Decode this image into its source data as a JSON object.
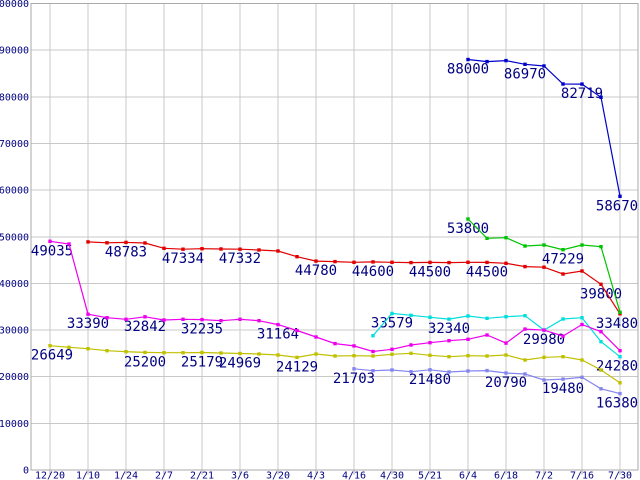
{
  "chart_data": {
    "type": "line",
    "title": "",
    "grid": true,
    "legend_position": "none",
    "colors": {
      "background": "#ffffff",
      "grid": "#c8c8c8",
      "axis": "#aaaaaa",
      "label_text": "#000080"
    },
    "x_axis": {
      "tick_labels": [
        "12/20",
        "1/10",
        "1/24",
        "2/7",
        "2/21",
        "3/6",
        "3/20",
        "4/3",
        "4/16",
        "4/30",
        "5/21",
        "6/4",
        "6/18",
        "7/2",
        "7/16",
        "7/30"
      ]
    },
    "y_axis": {
      "min": 0,
      "max": 100000,
      "step": 10000,
      "tick_labels": [
        "0",
        "10000",
        "20000",
        "30000",
        "40000",
        "50000",
        "60000",
        "70000",
        "80000",
        "90000",
        "100000"
      ]
    },
    "series": [
      {
        "name": "slate",
        "color": "#8585f0",
        "points": [
          [
            8,
            21703
          ],
          [
            8.5,
            21290
          ],
          [
            9,
            21440
          ],
          [
            9.5,
            21070
          ],
          [
            10,
            21480
          ],
          [
            10.5,
            21010
          ],
          [
            11,
            21220
          ],
          [
            11.5,
            21300
          ],
          [
            12,
            20790
          ],
          [
            12.5,
            20580
          ],
          [
            13,
            19290
          ],
          [
            13.5,
            19480
          ],
          [
            14,
            19870
          ],
          [
            14.5,
            17400
          ],
          [
            15,
            16380
          ]
        ],
        "labels": [
          {
            "at": 8,
            "text": "21703"
          },
          {
            "at": 10,
            "text": "21480"
          },
          {
            "at": 12,
            "text": "20790"
          },
          {
            "at": 13.5,
            "text": "19480"
          },
          {
            "at": 15,
            "text": "16380"
          }
        ]
      },
      {
        "name": "olive",
        "color": "#c0c000",
        "points": [
          [
            0,
            26649
          ],
          [
            0.5,
            26300
          ],
          [
            1,
            26000
          ],
          [
            1.5,
            25570
          ],
          [
            2,
            25360
          ],
          [
            2.5,
            25200
          ],
          [
            3,
            25150
          ],
          [
            3.5,
            25150
          ],
          [
            4,
            25179
          ],
          [
            4.5,
            25080
          ],
          [
            5,
            24969
          ],
          [
            5.5,
            24860
          ],
          [
            6,
            24650
          ],
          [
            6.5,
            24129
          ],
          [
            7,
            24860
          ],
          [
            7.5,
            24440
          ],
          [
            8,
            24510
          ],
          [
            8.5,
            24440
          ],
          [
            9,
            24800
          ],
          [
            9.5,
            25010
          ],
          [
            10,
            24580
          ],
          [
            10.5,
            24290
          ],
          [
            11,
            24510
          ],
          [
            11.5,
            24440
          ],
          [
            12,
            24650
          ],
          [
            12.5,
            23580
          ],
          [
            13,
            24150
          ],
          [
            13.5,
            24290
          ],
          [
            14,
            23580
          ],
          [
            14.5,
            21440
          ],
          [
            15,
            18700
          ]
        ],
        "labels": [
          {
            "at": 0,
            "text": "26649"
          },
          {
            "at": 2.5,
            "text": "25200"
          },
          {
            "at": 4,
            "text": "25179"
          },
          {
            "at": 5,
            "text": "24969"
          },
          {
            "at": 6.5,
            "text": "24129"
          }
        ]
      },
      {
        "name": "red",
        "color": "#e00000",
        "points": [
          [
            1,
            48900
          ],
          [
            1.5,
            48700
          ],
          [
            2,
            48783
          ],
          [
            2.5,
            48650
          ],
          [
            3,
            47520
          ],
          [
            3.5,
            47334
          ],
          [
            4,
            47430
          ],
          [
            4.5,
            47380
          ],
          [
            5,
            47332
          ],
          [
            5.5,
            47160
          ],
          [
            6,
            46950
          ],
          [
            6.5,
            45730
          ],
          [
            7,
            44780
          ],
          [
            7.5,
            44670
          ],
          [
            8,
            44530
          ],
          [
            8.5,
            44600
          ],
          [
            9,
            44530
          ],
          [
            9.5,
            44460
          ],
          [
            10,
            44500
          ],
          [
            10.5,
            44460
          ],
          [
            11,
            44520
          ],
          [
            11.5,
            44500
          ],
          [
            12,
            44300
          ],
          [
            12.5,
            43600
          ],
          [
            13,
            43470
          ],
          [
            13.5,
            42020
          ],
          [
            14,
            42660
          ],
          [
            14.5,
            39800
          ],
          [
            15,
            33480
          ]
        ],
        "labels": [
          {
            "at": 2,
            "text": "48783"
          },
          {
            "at": 3.5,
            "text": "47334"
          },
          {
            "at": 5,
            "text": "47332"
          },
          {
            "at": 7,
            "text": "44780"
          },
          {
            "at": 8.5,
            "text": "44600"
          },
          {
            "at": 10,
            "text": "44500"
          },
          {
            "at": 11.5,
            "text": "44500"
          },
          {
            "at": 14.5,
            "text": "39800"
          },
          {
            "at": 15,
            "text": "33480"
          }
        ]
      },
      {
        "name": "green",
        "color": "#00c400",
        "points": [
          [
            11,
            53800
          ],
          [
            11.5,
            49660
          ],
          [
            12,
            49800
          ],
          [
            12.5,
            48010
          ],
          [
            13,
            48230
          ],
          [
            13.5,
            47229
          ],
          [
            14,
            48230
          ],
          [
            14.5,
            47870
          ],
          [
            15,
            33800
          ]
        ],
        "labels": [
          {
            "at": 11,
            "text": "53800"
          },
          {
            "at": 13.5,
            "text": "47229"
          }
        ]
      },
      {
        "name": "cyan",
        "color": "#00dede",
        "points": [
          [
            8.5,
            28790
          ],
          [
            9,
            33579
          ],
          [
            9.5,
            33160
          ],
          [
            10,
            32730
          ],
          [
            10.5,
            32340
          ],
          [
            11,
            33010
          ],
          [
            11.5,
            32520
          ],
          [
            12,
            32870
          ],
          [
            12.5,
            33080
          ],
          [
            13,
            29980
          ],
          [
            13.5,
            32370
          ],
          [
            14,
            32650
          ],
          [
            14.5,
            27510
          ],
          [
            15,
            24280
          ]
        ],
        "labels": [
          {
            "at": 9,
            "text": "33579"
          },
          {
            "at": 10.5,
            "text": "32340"
          },
          {
            "at": 15,
            "text": "24280"
          }
        ]
      },
      {
        "name": "magenta",
        "color": "#ee00ee",
        "points": [
          [
            0,
            49035
          ],
          [
            0.5,
            48440
          ],
          [
            1,
            33390
          ],
          [
            1.5,
            32650
          ],
          [
            2,
            32300
          ],
          [
            2.5,
            32842
          ],
          [
            3,
            32160
          ],
          [
            3.5,
            32300
          ],
          [
            4,
            32235
          ],
          [
            4.5,
            32010
          ],
          [
            5,
            32300
          ],
          [
            5.5,
            32010
          ],
          [
            6,
            31164
          ],
          [
            6.5,
            29900
          ],
          [
            7,
            28500
          ],
          [
            7.5,
            27100
          ],
          [
            8,
            26600
          ],
          [
            8.5,
            25400
          ],
          [
            9,
            25870
          ],
          [
            9.5,
            26800
          ],
          [
            10,
            27290
          ],
          [
            10.5,
            27720
          ],
          [
            11,
            28020
          ],
          [
            11.5,
            28940
          ],
          [
            12,
            27200
          ],
          [
            12.5,
            30200
          ],
          [
            13,
            29980
          ],
          [
            13.5,
            28700
          ],
          [
            14,
            31200
          ],
          [
            14.5,
            29650
          ],
          [
            15,
            25580
          ]
        ],
        "labels": [
          {
            "at": 0,
            "text": "49035"
          },
          {
            "at": 1,
            "text": "33390"
          },
          {
            "at": 2.5,
            "text": "32842"
          },
          {
            "at": 4,
            "text": "32235"
          },
          {
            "at": 6,
            "text": "31164"
          },
          {
            "at": 13,
            "text": "29980"
          }
        ]
      },
      {
        "name": "blue",
        "color": "#0000cc",
        "points": [
          [
            11,
            88000
          ],
          [
            11.5,
            87540
          ],
          [
            12,
            87750
          ],
          [
            12.5,
            86970
          ],
          [
            13,
            86600
          ],
          [
            13.5,
            82740
          ],
          [
            14,
            82719
          ],
          [
            14.5,
            79890
          ],
          [
            15,
            58670
          ]
        ],
        "labels": [
          {
            "at": 11,
            "text": "88000"
          },
          {
            "at": 12.5,
            "text": "86970"
          },
          {
            "at": 14,
            "text": "82719"
          },
          {
            "at": 15,
            "text": "58670"
          }
        ]
      }
    ]
  }
}
